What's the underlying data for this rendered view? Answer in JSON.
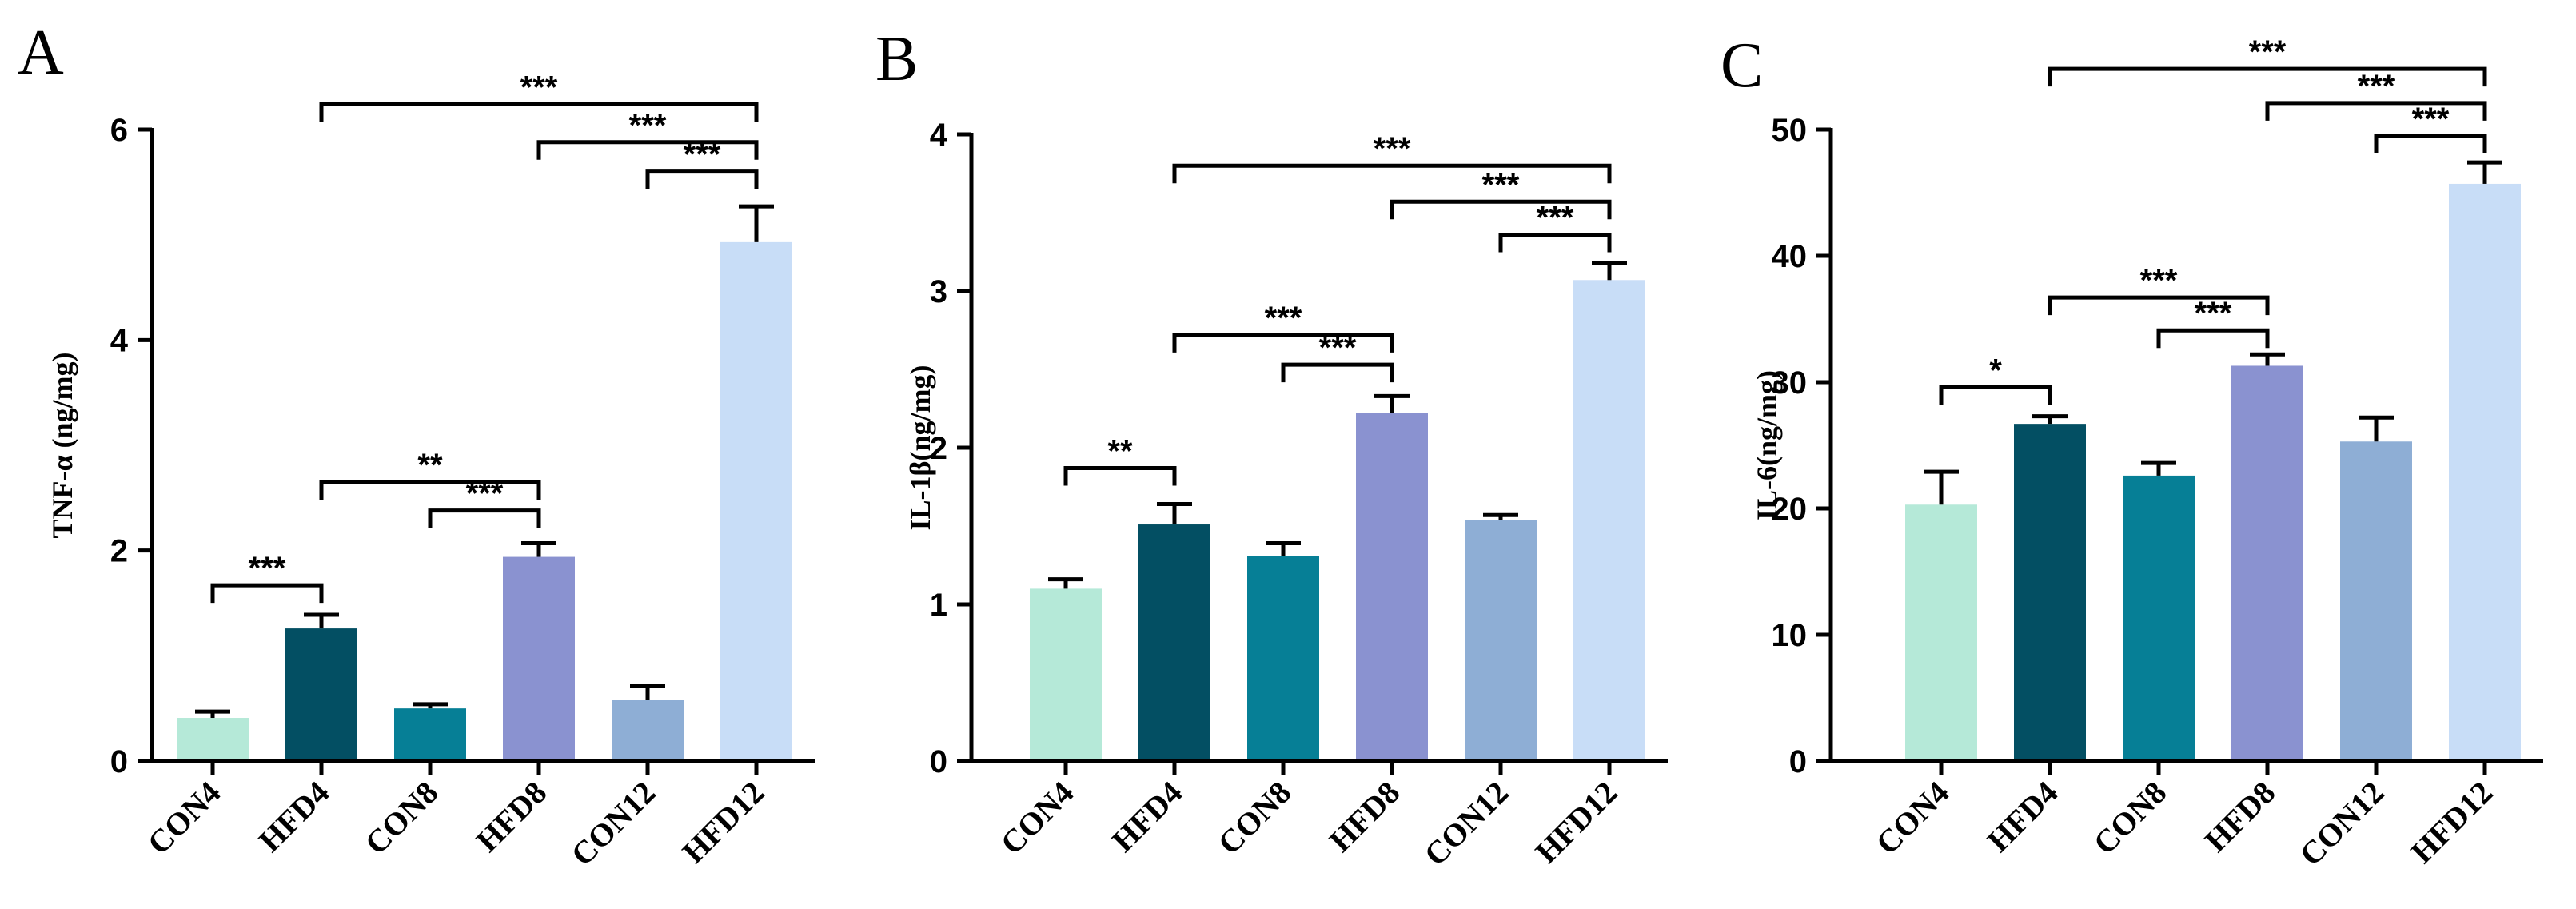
{
  "chart_data": [
    {
      "type": "bar",
      "panel": "A",
      "ylabel": "TNF-α (ng/mg)",
      "ylim": [
        0,
        6
      ],
      "yticks": [
        0,
        2,
        4,
        6
      ],
      "categories": [
        "CON4",
        "HFD4",
        "CON8",
        "HFD8",
        "CON12",
        "HFD12"
      ],
      "values": [
        0.41,
        1.26,
        0.5,
        1.94,
        0.58,
        4.93
      ],
      "errors": [
        0.06,
        0.13,
        0.04,
        0.13,
        0.13,
        0.34
      ],
      "colors": [
        "#b5e9d8",
        "#034f63",
        "#067f96",
        "#8a92d0",
        "#8eaed5",
        "#c8ddf7"
      ],
      "comparisons": [
        {
          "from": 0,
          "to": 1,
          "label": "***",
          "y": 1.67
        },
        {
          "from": 2,
          "to": 3,
          "label": "***",
          "y": 2.38
        },
        {
          "from": 1,
          "to": 3,
          "label": "**",
          "y": 2.65
        },
        {
          "from": 4,
          "to": 5,
          "label": "***",
          "y": 5.6
        },
        {
          "from": 3,
          "to": 5,
          "label": "***",
          "y": 5.88
        },
        {
          "from": 1,
          "to": 5,
          "label": "***",
          "y": 6.24
        }
      ]
    },
    {
      "type": "bar",
      "panel": "B",
      "ylabel": "IL-1β(ng/mg)",
      "ylim": [
        0,
        4
      ],
      "yticks": [
        0,
        1,
        2,
        3,
        4
      ],
      "categories": [
        "CON4",
        "HFD4",
        "CON8",
        "HFD8",
        "CON12",
        "HFD12"
      ],
      "values": [
        1.1,
        1.51,
        1.31,
        2.22,
        1.54,
        3.07
      ],
      "errors": [
        0.06,
        0.13,
        0.08,
        0.11,
        0.03,
        0.11
      ],
      "colors": [
        "#b5e9d8",
        "#034f63",
        "#067f96",
        "#8a92d0",
        "#8eaed5",
        "#c8ddf7"
      ],
      "comparisons": [
        {
          "from": 0,
          "to": 1,
          "label": "**",
          "y": 1.87
        },
        {
          "from": 2,
          "to": 3,
          "label": "***",
          "y": 2.53
        },
        {
          "from": 1,
          "to": 3,
          "label": "***",
          "y": 2.72
        },
        {
          "from": 4,
          "to": 5,
          "label": "***",
          "y": 3.36
        },
        {
          "from": 3,
          "to": 5,
          "label": "***",
          "y": 3.57
        },
        {
          "from": 1,
          "to": 5,
          "label": "***",
          "y": 3.8
        }
      ]
    },
    {
      "type": "bar",
      "panel": "C",
      "ylabel": "IL-6(ng/mg)",
      "ylim": [
        0,
        50
      ],
      "yticks": [
        0,
        10,
        20,
        30,
        40,
        50
      ],
      "categories": [
        "CON4",
        "HFD4",
        "CON8",
        "HFD8",
        "CON12",
        "HFD12"
      ],
      "values": [
        20.3,
        26.7,
        22.6,
        31.3,
        25.3,
        45.7
      ],
      "errors": [
        2.6,
        0.6,
        1.0,
        0.9,
        1.9,
        1.7
      ],
      "colors": [
        "#b5e9d8",
        "#034f63",
        "#067f96",
        "#8a92d0",
        "#8eaed5",
        "#c8ddf7"
      ],
      "comparisons": [
        {
          "from": 0,
          "to": 1,
          "label": "*",
          "y": 29.6
        },
        {
          "from": 2,
          "to": 3,
          "label": "***",
          "y": 34.1
        },
        {
          "from": 1,
          "to": 3,
          "label": "***",
          "y": 36.7
        },
        {
          "from": 4,
          "to": 5,
          "label": "***",
          "y": 49.5
        },
        {
          "from": 3,
          "to": 5,
          "label": "***",
          "y": 52.1
        },
        {
          "from": 1,
          "to": 5,
          "label": "***",
          "y": 54.8
        }
      ]
    }
  ]
}
